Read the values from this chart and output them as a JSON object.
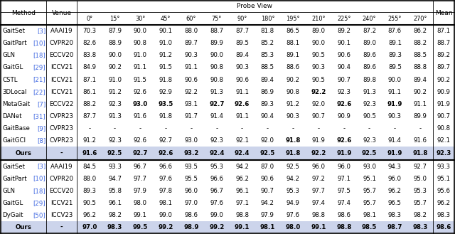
{
  "probe_views": [
    "0°",
    "15°",
    "30°",
    "45°",
    "60°",
    "75°",
    "90°",
    "180°",
    "195°",
    "210°",
    "225°",
    "240°",
    "255°",
    "270°"
  ],
  "section1_rows": [
    [
      "GaitSet",
      "[3]",
      "AAAI19",
      "70.3",
      "87.9",
      "90.0",
      "90.1",
      "88.0",
      "88.7",
      "87.7",
      "81.8",
      "86.5",
      "89.0",
      "89.2",
      "87.2",
      "87.6",
      "86.2",
      "87.1"
    ],
    [
      "GaitPart",
      "[10]",
      "CVPR20",
      "82.6",
      "88.9",
      "90.8",
      "91.0",
      "89.7",
      "89.9",
      "89.5",
      "85.2",
      "88.1",
      "90.0",
      "90.1",
      "89.0",
      "89.1",
      "88.2",
      "88.7"
    ],
    [
      "GLN",
      "[18]",
      "ECCV20",
      "83.8",
      "90.0",
      "91.0",
      "91.2",
      "90.3",
      "90.0",
      "89.4",
      "85.3",
      "89.1",
      "90.5",
      "90.6",
      "89.6",
      "89.3",
      "88.5",
      "89.2"
    ],
    [
      "GaitGL",
      "[29]",
      "ICCV21",
      "84.9",
      "90.2",
      "91.1",
      "91.5",
      "91.1",
      "90.8",
      "90.3",
      "88.5",
      "88.6",
      "90.3",
      "90.4",
      "89.6",
      "89.5",
      "88.8",
      "89.7"
    ],
    [
      "CSTL",
      "[21]",
      "ICCV21",
      "87.1",
      "91.0",
      "91.5",
      "91.8",
      "90.6",
      "90.8",
      "90.6",
      "89.4",
      "90.2",
      "90.5",
      "90.7",
      "89.8",
      "90.0",
      "89.4",
      "90.2"
    ],
    [
      "3DLocal",
      "[22]",
      "ICCV21",
      "86.1",
      "91.2",
      "92.6",
      "92.9",
      "92.2",
      "91.3",
      "91.1",
      "86.9",
      "90.8",
      "92.2",
      "92.3",
      "91.3",
      "91.1",
      "90.2",
      "90.9"
    ],
    [
      "MetaGait",
      "[7]",
      "ECCV22",
      "88.2",
      "92.3",
      "93.0",
      "93.5",
      "93.1",
      "92.7",
      "92.6",
      "89.3",
      "91.2",
      "92.0",
      "92.6",
      "92.3",
      "91.9",
      "91.1",
      "91.9"
    ],
    [
      "DANet",
      "[31]",
      "CVPR23",
      "87.7",
      "91.3",
      "91.6",
      "91.8",
      "91.7",
      "91.4",
      "91.1",
      "90.4",
      "90.3",
      "90.7",
      "90.9",
      "90.5",
      "90.3",
      "89.9",
      "90.7"
    ],
    [
      "GaitBase",
      "[9]",
      "CVPR23",
      "-",
      "-",
      "-",
      "-",
      "-",
      "-",
      "-",
      "-",
      "-",
      "-",
      "-",
      "-",
      "-",
      "-",
      "90.8"
    ],
    [
      "GaitGCI",
      "[8]",
      "CVPR23",
      "91.2",
      "92.3",
      "92.6",
      "92.7",
      "93.0",
      "92.3",
      "92.1",
      "92.0",
      "91.8",
      "91.9",
      "92.6",
      "92.3",
      "91.4",
      "91.6",
      "92.1"
    ],
    [
      "Ours",
      "",
      "-",
      "91.6",
      "92.5",
      "92.7",
      "92.6",
      "93.2",
      "92.4",
      "92.4",
      "92.5",
      "91.8",
      "92.2",
      "91.9",
      "92.5",
      "91.9",
      "91.8",
      "92.3"
    ]
  ],
  "section2_rows": [
    [
      "GaitSet",
      "[3]",
      "AAAI19",
      "84.5",
      "93.3",
      "96.7",
      "96.6",
      "93.5",
      "95.3",
      "94.2",
      "87.0",
      "92.5",
      "96.0",
      "96.0",
      "93.0",
      "94.3",
      "92.7",
      "93.3"
    ],
    [
      "GaitPart",
      "[10]",
      "CVPR20",
      "88.0",
      "94.7",
      "97.7",
      "97.6",
      "95.5",
      "96.6",
      "96.2",
      "90.6",
      "94.2",
      "97.2",
      "97.1",
      "95.1",
      "96.0",
      "95.0",
      "95.1"
    ],
    [
      "GLN",
      "[18]",
      "ECCV20",
      "89.3",
      "95.8",
      "97.9",
      "97.8",
      "96.0",
      "96.7",
      "96.1",
      "90.7",
      "95.3",
      "97.7",
      "97.5",
      "95.7",
      "96.2",
      "95.3",
      "95.6"
    ],
    [
      "GaitGL",
      "[29]",
      "ICCV21",
      "90.5",
      "96.1",
      "98.0",
      "98.1",
      "97.0",
      "97.6",
      "97.1",
      "94.2",
      "94.9",
      "97.4",
      "97.4",
      "95.7",
      "96.5",
      "95.7",
      "96.2"
    ],
    [
      "DyGait",
      "[50]",
      "ICCV23",
      "96.2",
      "98.2",
      "99.1",
      "99.0",
      "98.6",
      "99.0",
      "98.8",
      "97.9",
      "97.6",
      "98.8",
      "98.6",
      "98.1",
      "98.3",
      "98.2",
      "98.3"
    ],
    [
      "Ours",
      "",
      "-",
      "97.0",
      "98.3",
      "99.5",
      "99.2",
      "98.9",
      "99.2",
      "99.1",
      "98.1",
      "98.0",
      "99.1",
      "98.8",
      "98.5",
      "98.7",
      "98.3",
      "98.6"
    ]
  ],
  "s1_bold": {
    "6": [
      2,
      3,
      5,
      6,
      10,
      12
    ],
    "5": [
      9
    ],
    "9": [
      8,
      10
    ],
    "10": [
      0,
      1,
      2,
      3,
      4,
      5,
      6,
      7,
      8,
      9,
      10,
      11,
      12,
      13,
      14
    ]
  },
  "s2_bold": {
    "5": [
      0,
      1,
      2,
      3,
      4,
      5,
      6,
      7,
      8,
      9,
      10,
      11,
      12,
      13,
      14
    ]
  },
  "ref_blue": "#4169e1",
  "ours_bg": "#ccd4eb",
  "font_size": 6.2,
  "header_font_size": 6.5
}
